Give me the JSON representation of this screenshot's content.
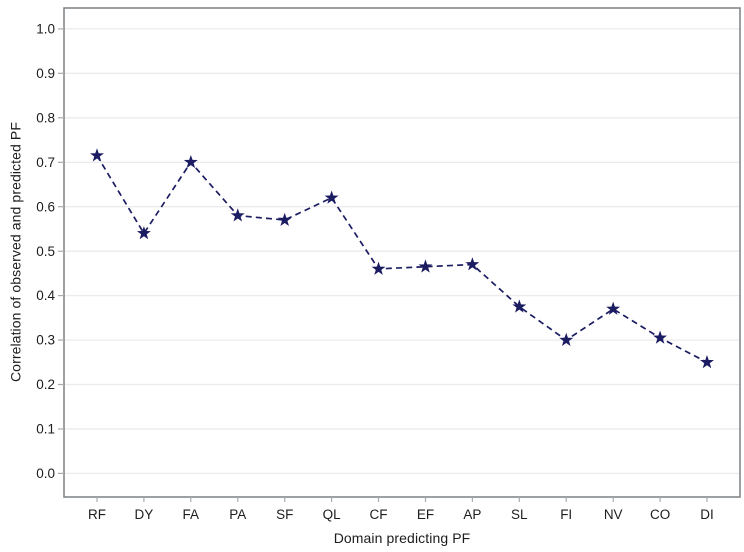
{
  "chart_data": {
    "type": "line",
    "title": "",
    "xlabel": "Domain predicting PF",
    "ylabel": "Correlation of observed and predicted PF",
    "categories": [
      "RF",
      "DY",
      "FA",
      "PA",
      "SF",
      "QL",
      "CF",
      "EF",
      "AP",
      "SL",
      "FI",
      "NV",
      "CO",
      "DI"
    ],
    "series": [
      {
        "name": "Correlation of observed and predicted PF",
        "values": [
          0.715,
          0.54,
          0.7,
          0.58,
          0.57,
          0.62,
          0.46,
          0.465,
          0.47,
          0.375,
          0.3,
          0.37,
          0.305,
          0.25
        ]
      }
    ],
    "ytick_labels": [
      "0.0",
      "0.1",
      "0.2",
      "0.3",
      "0.4",
      "0.5",
      "0.6",
      "0.7",
      "0.8",
      "0.9",
      "1.0"
    ],
    "yticks": [
      0.0,
      0.1,
      0.2,
      0.3,
      0.4,
      0.5,
      0.6,
      0.7,
      0.8,
      0.9,
      1.0
    ],
    "ylim": [
      -0.053,
      1.047
    ],
    "grid": "horizontal",
    "legend": "none",
    "marker": "star",
    "line_style": "dashed",
    "colors": {
      "line": "#1b1c62",
      "marker": "#1b1c62",
      "grid": "#ebebeb",
      "frame": "#84888c",
      "tick": "#aaaaaa",
      "text": "#1d1d1d",
      "background": "#ffffff"
    }
  }
}
